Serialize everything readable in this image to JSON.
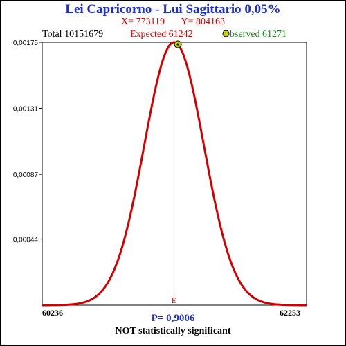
{
  "header": {
    "title": "Lei Capricorno - Lui Sagittario  0,05%",
    "x_label": "X= 773119",
    "y_label": "Y= 804163",
    "total": "Total  10151679",
    "expected": "Expected  61242",
    "observed": "bserved  61271"
  },
  "footer": {
    "p_value": "P= 0,9006",
    "verdict": "NOT statistically significant"
  },
  "colors": {
    "title": "#1f2fcf",
    "curve": "#d40000",
    "observed": "#1b8a1b",
    "marker_fill": "#c8d400"
  },
  "chart_data": {
    "type": "line",
    "x_range": [
      60236,
      62253
    ],
    "x_tick_labels": [
      "60236",
      "62253"
    ],
    "y_ticks": [
      {
        "value": 0.00175,
        "label": "0,00175"
      },
      {
        "value": 0.00131,
        "label": "0,00131"
      },
      {
        "value": 0.00087,
        "label": "0,00087"
      },
      {
        "value": 0.00044,
        "label": "0,00044"
      }
    ],
    "ylim": [
      0,
      0.00175
    ],
    "curve": {
      "distribution": "normal",
      "mean": 61242,
      "sd": 228,
      "peak": 0.00175
    },
    "expected": {
      "x": 61242,
      "label": "E"
    },
    "observed": {
      "x": 61271
    }
  }
}
